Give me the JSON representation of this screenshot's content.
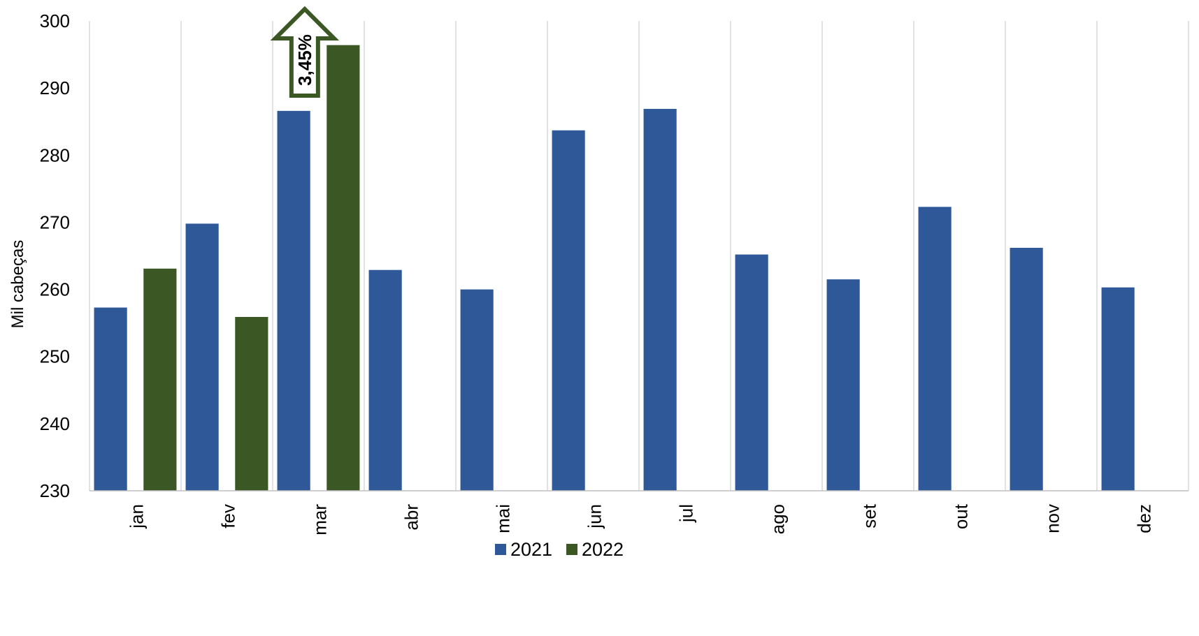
{
  "chart_data": {
    "type": "bar",
    "title": "",
    "xlabel": "",
    "ylabel": "Mil cabeças",
    "ylim": [
      230,
      300
    ],
    "yticks": [
      230,
      240,
      250,
      260,
      270,
      280,
      290,
      300
    ],
    "grid": "vertical category separators",
    "legend_position": "bottom-center",
    "categories": [
      "jan",
      "fev",
      "mar",
      "abr",
      "mai",
      "jun",
      "jul",
      "ago",
      "set",
      "out",
      "nov",
      "dez"
    ],
    "series": [
      {
        "name": "2021",
        "color": "#2E5897",
        "values": [
          257.3,
          269.8,
          286.6,
          262.9,
          260.0,
          283.7,
          286.9,
          265.2,
          261.5,
          272.3,
          266.2,
          260.3
        ]
      },
      {
        "name": "2022",
        "color": "#3A5724",
        "values": [
          263.1,
          255.9,
          296.4,
          null,
          null,
          null,
          null,
          null,
          null,
          null,
          null,
          null
        ]
      }
    ],
    "annotations": [
      {
        "text": "3,45%",
        "category": "mar",
        "shape": "up-arrow",
        "color": "#3A5724"
      }
    ]
  }
}
